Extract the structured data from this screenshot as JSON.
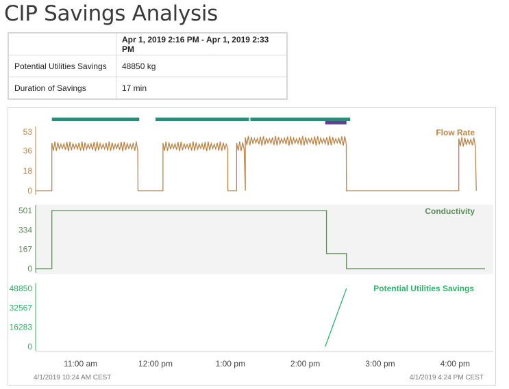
{
  "page": {
    "title": "CIP Savings Analysis"
  },
  "summary": {
    "header_range": "Apr 1, 2019 2:16 PM - Apr 1, 2019 2:33 PM",
    "rows": [
      {
        "label": "Potential Utilities Savings",
        "value": "48850 kg"
      },
      {
        "label": "Duration of Savings",
        "value": "17 min"
      }
    ]
  },
  "colors": {
    "flow": "#b8864b",
    "conductivity": "#5c8a57",
    "savings": "#2db369",
    "segment_bar": "#2e8b7a",
    "highlight_bar": "#6b3a9e",
    "panel_shade": "#f3f3f3"
  },
  "chart_data": {
    "type": "line",
    "x_axis": {
      "ticks": [
        "11:00 am",
        "12:00 pm",
        "1:00 pm",
        "2:00 pm",
        "3:00 pm",
        "4:00 pm"
      ],
      "start_label": "4/1/2019 10:24 AM CEST",
      "end_label": "4/1/2019 4:24 PM CEST"
    },
    "panels": [
      {
        "name": "Flow Rate",
        "yticks": [
          "53",
          "36",
          "18",
          "0"
        ],
        "ylim": [
          0,
          53
        ],
        "segments": [
          {
            "start": "10:24",
            "end": "10:37",
            "value": 0
          },
          {
            "start": "10:37",
            "end": "11:46",
            "value": 40,
            "oscillate": true
          },
          {
            "start": "11:46",
            "end": "12:06",
            "value": 0
          },
          {
            "start": "12:06",
            "end": "12:58",
            "value": 40,
            "oscillate": true
          },
          {
            "start": "12:58",
            "end": "13:05",
            "value": 0
          },
          {
            "start": "13:05",
            "end": "13:12",
            "value": 40,
            "oscillate": true
          },
          {
            "start": "13:12",
            "end": "14:33",
            "value": 45,
            "oscillate": true
          },
          {
            "start": "14:33",
            "end": "16:03",
            "value": 0
          },
          {
            "start": "16:03",
            "end": "16:17",
            "value": 44,
            "oscillate": true
          }
        ]
      },
      {
        "name": "Conductivity",
        "yticks": [
          "501",
          "334",
          "167",
          "0"
        ],
        "ylim": [
          0,
          501
        ],
        "points": [
          [
            "10:24",
            0
          ],
          [
            "10:37",
            0
          ],
          [
            "10:37",
            501
          ],
          [
            "14:17",
            501
          ],
          [
            "14:17",
            130
          ],
          [
            "14:23",
            130
          ],
          [
            "14:33",
            130
          ],
          [
            "14:33",
            0
          ],
          [
            "16:24",
            0
          ]
        ]
      },
      {
        "name": "Potential Utilities Savings",
        "yticks": [
          "48850",
          "32567",
          "16283",
          "0"
        ],
        "ylim": [
          0,
          48850
        ],
        "points": [
          [
            "14:16",
            0
          ],
          [
            "14:33",
            48850
          ]
        ]
      }
    ],
    "bars": [
      {
        "start": "10:37",
        "end": "11:47",
        "kind": "segment"
      },
      {
        "start": "12:00",
        "end": "13:15",
        "kind": "segment"
      },
      {
        "start": "13:16",
        "end": "14:36",
        "kind": "segment"
      },
      {
        "start": "14:16",
        "end": "14:33",
        "kind": "highlight"
      }
    ]
  }
}
